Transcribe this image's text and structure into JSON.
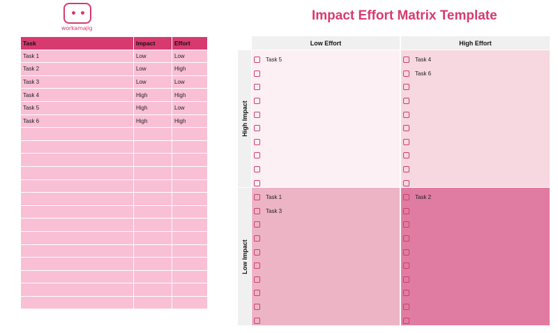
{
  "logo": {
    "text": "workamajig"
  },
  "title": "Impact Effort Matrix Template",
  "table": {
    "headers": [
      "Task",
      "Impact",
      "Effort"
    ],
    "rows": [
      [
        "Task 1",
        "Low",
        "Low"
      ],
      [
        "Task 2",
        "Low",
        "High"
      ],
      [
        "Task 3",
        "Low",
        "Low"
      ],
      [
        "Task 4",
        "High",
        "High"
      ],
      [
        "Task 5",
        "High",
        "Low"
      ],
      [
        "Task 6",
        "High",
        "High"
      ],
      [
        "",
        "",
        ""
      ],
      [
        "",
        "",
        ""
      ],
      [
        "",
        "",
        ""
      ],
      [
        "",
        "",
        ""
      ],
      [
        "",
        "",
        ""
      ],
      [
        "",
        "",
        ""
      ],
      [
        "",
        "",
        ""
      ],
      [
        "",
        "",
        ""
      ],
      [
        "",
        "",
        ""
      ],
      [
        "",
        "",
        ""
      ],
      [
        "",
        "",
        ""
      ],
      [
        "",
        "",
        ""
      ],
      [
        "",
        "",
        ""
      ],
      [
        "",
        "",
        ""
      ]
    ]
  },
  "matrix": {
    "col_headers": {
      "low": "Low Effort",
      "high": "High Effort"
    },
    "row_headers": {
      "high": "High Impact",
      "low": "Low Impact"
    },
    "quadrants": {
      "high_low": [
        "Task 5",
        "",
        "",
        "",
        "",
        "",
        "",
        "",
        "",
        ""
      ],
      "high_high": [
        "Task 4",
        "Task 6",
        "",
        "",
        "",
        "",
        "",
        "",
        "",
        ""
      ],
      "low_low": [
        "Task 1",
        "Task 3",
        "",
        "",
        "",
        "",
        "",
        "",
        "",
        ""
      ],
      "low_high": [
        "Task 2",
        "",
        "",
        "",
        "",
        "",
        "",
        "",
        "",
        ""
      ]
    }
  },
  "colors": {
    "accent": "#d63a6e",
    "table_cell": "#f9bfd5",
    "q_high_low": "#fdf0f4",
    "q_high_high": "#f7d7e0",
    "q_low_low": "#edb4c6",
    "q_low_high": "#e07ca1"
  }
}
